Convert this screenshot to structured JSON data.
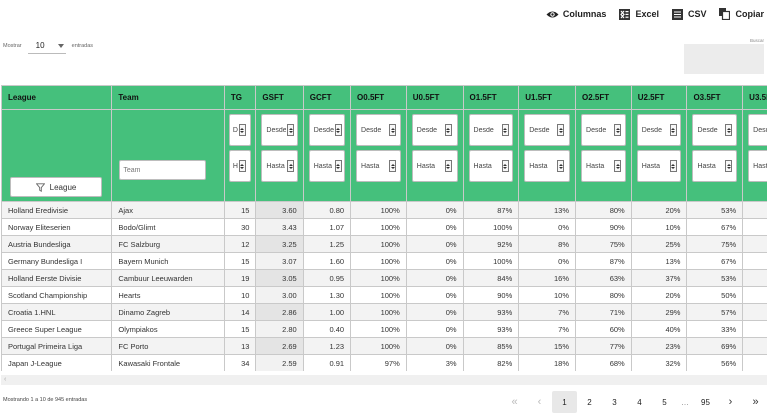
{
  "toolbar": {
    "columns": {
      "label": "Columnas",
      "icon": "eye-icon"
    },
    "excel": {
      "label": "Excel",
      "icon": "excel-icon"
    },
    "csv": {
      "label": "CSV",
      "icon": "csv-icon"
    },
    "copy": {
      "label": "Copiar",
      "icon": "copy-icon"
    }
  },
  "length": {
    "prefix": "Mostrar",
    "value": "10",
    "suffix": "entradas"
  },
  "search": {
    "label": "Buscar",
    "value": ""
  },
  "columns": [
    "League",
    "Team",
    "TG",
    "GSFT",
    "GCFT",
    "O0.5FT",
    "U0.5FT",
    "O1.5FT",
    "U1.5FT",
    "O2.5FT",
    "U2.5FT",
    "O3.5FT",
    "U3.5FT"
  ],
  "filters": {
    "team_placeholder": "Team",
    "league_button": "League",
    "tg_from": "Desde",
    "tg_to": "Hasta",
    "from": "Desde",
    "to": "Hasta"
  },
  "rows": [
    [
      "Holland Eredivisie",
      "Ajax",
      "15",
      "3.60",
      "0.80",
      "100%",
      "0%",
      "87%",
      "13%",
      "80%",
      "20%",
      "53%",
      "47%"
    ],
    [
      "Norway Eliteserien",
      "Bodo/Glimt",
      "30",
      "3.43",
      "1.07",
      "100%",
      "0%",
      "100%",
      "0%",
      "90%",
      "10%",
      "67%",
      "33%"
    ],
    [
      "Austria Bundesliga",
      "FC Salzburg",
      "12",
      "3.25",
      "1.25",
      "100%",
      "0%",
      "92%",
      "8%",
      "75%",
      "25%",
      "75%",
      "25%"
    ],
    [
      "Germany Bundesliga I",
      "Bayern Munich",
      "15",
      "3.07",
      "1.60",
      "100%",
      "0%",
      "100%",
      "0%",
      "87%",
      "13%",
      "67%",
      "33%"
    ],
    [
      "Holland Eerste Divisie",
      "Cambuur Leeuwarden",
      "19",
      "3.05",
      "0.95",
      "100%",
      "0%",
      "84%",
      "16%",
      "63%",
      "37%",
      "53%",
      "47%"
    ],
    [
      "Scotland Championship",
      "Hearts",
      "10",
      "3.00",
      "1.30",
      "100%",
      "0%",
      "90%",
      "10%",
      "80%",
      "20%",
      "50%",
      "50%"
    ],
    [
      "Croatia 1.HNL",
      "Dinamo Zagreb",
      "14",
      "2.86",
      "1.00",
      "100%",
      "0%",
      "93%",
      "7%",
      "71%",
      "29%",
      "57%",
      "43%"
    ],
    [
      "Greece Super League",
      "Olympiakos",
      "15",
      "2.80",
      "0.40",
      "100%",
      "0%",
      "93%",
      "7%",
      "60%",
      "40%",
      "33%",
      "67%"
    ],
    [
      "Portugal Primeira Liga",
      "FC Porto",
      "13",
      "2.69",
      "1.23",
      "100%",
      "0%",
      "85%",
      "15%",
      "77%",
      "23%",
      "69%",
      "31%"
    ],
    [
      "Japan J-League",
      "Kawasaki Frontale",
      "34",
      "2.59",
      "0.91",
      "97%",
      "3%",
      "82%",
      "18%",
      "68%",
      "32%",
      "56%",
      "44%"
    ]
  ],
  "info": "Mostrando 1 a 10 de 945 entradas",
  "pagination": {
    "first": "«",
    "prev": "‹",
    "pages": [
      "1",
      "2",
      "3",
      "4",
      "5"
    ],
    "current": "1",
    "ellipsis": "…",
    "last_page": "95",
    "next": "›",
    "last": "»"
  },
  "colors": {
    "header": "#45c07c",
    "stripe": "#f3f3f3",
    "sorted": "#e4e4e4"
  }
}
